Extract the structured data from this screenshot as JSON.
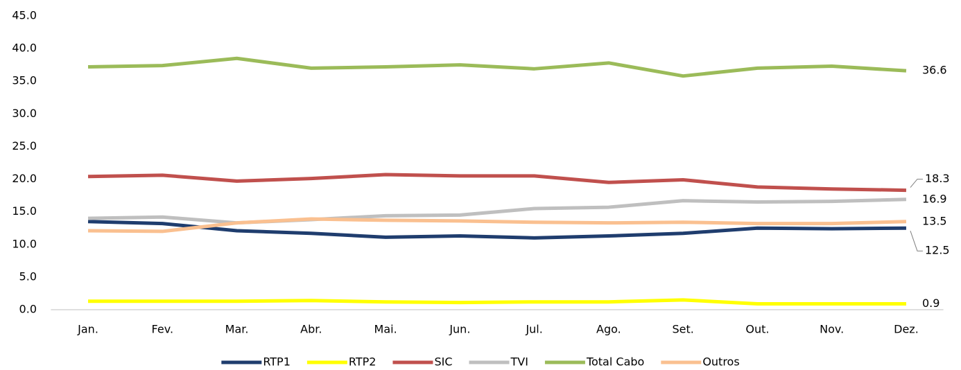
{
  "chart_data": {
    "type": "line",
    "categories": [
      "Jan.",
      "Fev.",
      "Mar.",
      "Abr.",
      "Mai.",
      "Jun.",
      "Jul.",
      "Ago.",
      "Set.",
      "Out.",
      "Nov.",
      "Dez."
    ],
    "series": [
      {
        "name": "RTP1",
        "color": "#1f3d6e",
        "values": [
          13.5,
          13.2,
          12.1,
          11.7,
          11.1,
          11.3,
          11.0,
          11.3,
          11.7,
          12.5,
          12.4,
          12.5
        ]
      },
      {
        "name": "RTP2",
        "color": "#ffff00",
        "values": [
          1.3,
          1.3,
          1.3,
          1.4,
          1.2,
          1.1,
          1.2,
          1.2,
          1.5,
          0.9,
          0.9,
          0.9
        ]
      },
      {
        "name": "SIC",
        "color": "#c0504d",
        "values": [
          20.4,
          20.6,
          19.7,
          20.1,
          20.7,
          20.5,
          20.5,
          19.5,
          19.9,
          18.8,
          18.5,
          18.3
        ]
      },
      {
        "name": "TVI",
        "color": "#bfbfbf",
        "values": [
          14.0,
          14.2,
          13.3,
          13.8,
          14.4,
          14.5,
          15.5,
          15.7,
          16.7,
          16.5,
          16.6,
          16.9
        ]
      },
      {
        "name": "Total Cabo",
        "color": "#9bbb59",
        "values": [
          37.2,
          37.4,
          38.5,
          37.0,
          37.2,
          37.5,
          36.9,
          37.8,
          35.8,
          37.0,
          37.3,
          36.6
        ]
      },
      {
        "name": "Outros",
        "color": "#fac090",
        "values": [
          12.1,
          12.0,
          13.3,
          13.9,
          13.7,
          13.6,
          13.4,
          13.3,
          13.4,
          13.2,
          13.2,
          13.5
        ]
      }
    ],
    "ylim": [
      0,
      45
    ],
    "yticks": [
      {
        "value": 0,
        "label": "0.0"
      },
      {
        "value": 5,
        "label": "5.0"
      },
      {
        "value": 10,
        "label": "10.0"
      },
      {
        "value": 15,
        "label": "15.0"
      },
      {
        "value": 20,
        "label": "20.0"
      },
      {
        "value": 25,
        "label": "25.0"
      },
      {
        "value": 30,
        "label": "30.0"
      },
      {
        "value": 35,
        "label": "35.0"
      },
      {
        "value": 40,
        "label": "40.0"
      },
      {
        "value": 45,
        "label": "45.0"
      }
    ],
    "grid": false,
    "label_last": true,
    "legend": "bottom"
  }
}
